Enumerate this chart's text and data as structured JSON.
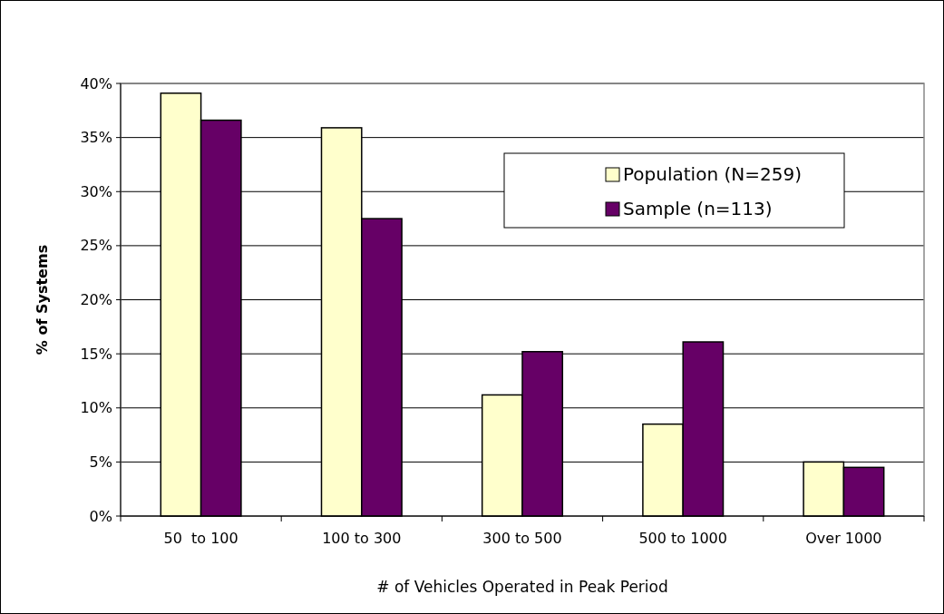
{
  "chart_data": {
    "type": "bar",
    "xlabel": "# of Vehicles Operated in Peak Period",
    "ylabel": "% of Systems",
    "categories": [
      "50  to 100",
      "100 to 300",
      "300 to 500",
      "500 to 1000",
      "Over 1000"
    ],
    "series": [
      {
        "name": "Population (N=259)",
        "color": "#ffffcc",
        "values": [
          39.1,
          35.9,
          11.2,
          8.5,
          5.0
        ]
      },
      {
        "name": "Sample (n=113)",
        "color": "#660066",
        "values": [
          36.6,
          27.5,
          15.2,
          16.1,
          4.5
        ]
      }
    ],
    "ylim": [
      0,
      40
    ],
    "yticks": [
      {
        "value": 0,
        "label": "0%"
      },
      {
        "value": 5,
        "label": "5%"
      },
      {
        "value": 10,
        "label": "10%"
      },
      {
        "value": 15,
        "label": "15%"
      },
      {
        "value": 20,
        "label": "20%"
      },
      {
        "value": 25,
        "label": "25%"
      },
      {
        "value": 30,
        "label": "30%"
      },
      {
        "value": 35,
        "label": "35%"
      },
      {
        "value": 40,
        "label": "40%"
      }
    ],
    "grid": "y",
    "legend": "top right"
  }
}
